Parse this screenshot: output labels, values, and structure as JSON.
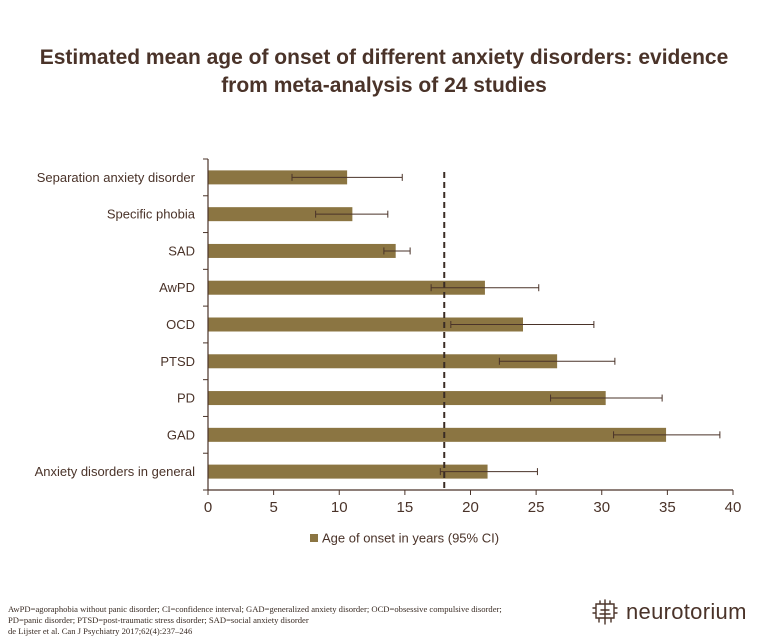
{
  "title": {
    "line1": "Estimated mean age of onset of different anxiety disorders: evidence",
    "line2": "from meta-analysis of 24 studies"
  },
  "chart_data": {
    "type": "bar",
    "orientation": "horizontal",
    "categories": [
      "Separation anxiety disorder",
      "Specific phobia",
      "SAD",
      "AwPD",
      "OCD",
      "PTSD",
      "PD",
      "GAD",
      "Anxiety disorders in general"
    ],
    "series": [
      {
        "name": "Age of onset in years (95% CI)",
        "values": [
          10.6,
          11.0,
          14.3,
          21.1,
          24.0,
          26.6,
          30.3,
          34.9,
          21.3
        ],
        "ci_low": [
          6.4,
          8.2,
          13.4,
          17.0,
          18.5,
          22.2,
          26.1,
          30.9,
          17.7
        ],
        "ci_high": [
          14.8,
          13.7,
          15.4,
          25.2,
          29.4,
          31.0,
          34.6,
          39.0,
          25.1
        ]
      }
    ],
    "xlim": [
      0,
      40
    ],
    "xticks": [
      "0",
      "5",
      "10",
      "15",
      "20",
      "25",
      "30",
      "35",
      "40"
    ],
    "reference_line": 18,
    "bar_color": "#8b7542",
    "axis_color": "#4a3329",
    "legend_position": "bottom",
    "grid": false
  },
  "footnote": {
    "line1": "AwPD=agoraphobia without panic disorder; CI=confidence interval; GAD=generalized anxiety disorder; OCD=obsessive compulsive disorder;",
    "line2": "PD=panic disorder; PTSD=post-traumatic stress disorder; SAD=social anxiety disorder",
    "line3": "de Lijster et al. Can J Psychiatry 2017;62(4):237–246"
  },
  "brand": {
    "name": "neurotorium",
    "icon": "brain-logo-icon"
  }
}
